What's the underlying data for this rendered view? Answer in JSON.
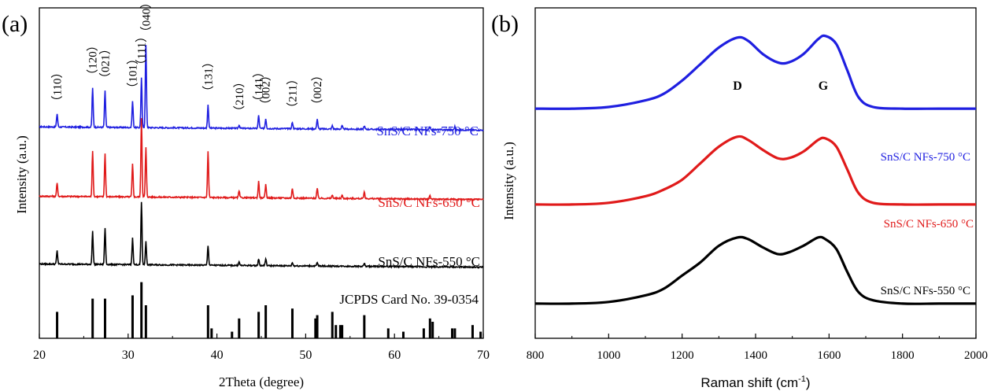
{
  "figure": {
    "panel_a": {
      "tag": "(a)",
      "xlabel": "2Theta (degree)",
      "ylabel": "Intensity (a.u.)",
      "xticks": [
        "20",
        "30",
        "40",
        "50",
        "60",
        "70"
      ],
      "hkl": [
        {
          "label": "（110）",
          "at": 22.0
        },
        {
          "label": "（120）",
          "at": 26.0
        },
        {
          "label": "（021）",
          "at": 27.4
        },
        {
          "label": "（101）",
          "at": 30.5
        },
        {
          "label": "（111）",
          "at": 31.5
        },
        {
          "label": "（040）",
          "at": 32.0
        },
        {
          "label": "（131）",
          "at": 39.0
        },
        {
          "label": "（210）",
          "at": 42.5
        },
        {
          "label": "（141）",
          "at": 44.7
        },
        {
          "label": "（002）",
          "at": 45.5
        },
        {
          "label": "（211）",
          "at": 48.5
        },
        {
          "label": "（002）",
          "at": 51.3
        }
      ],
      "labels": {
        "s750": "SnS/C NFs-750 °C",
        "s650": "SnS/C NFs-650 °C",
        "s550": "SnS/C NFs-550 °C",
        "ref": "JCPDS Card No. 39-0354"
      }
    },
    "panel_b": {
      "tag": "(b)",
      "xlabel_main": "Raman shift (cm",
      "xlabel_sup": "-1",
      "xlabel_end": ")",
      "ylabel": "Intensity (a.u.)",
      "xticks": [
        "800",
        "1000",
        "1200",
        "1400",
        "1600",
        "1800",
        "2000"
      ],
      "peak_d": "D",
      "peak_g": "G",
      "labels": {
        "s750": "SnS/C NFs-750 °C",
        "s650": "SnS/C NFs-650 °C",
        "s550": "SnS/C NFs-550 °C"
      }
    }
  },
  "chart_data": [
    {
      "type": "line",
      "title": "(a)",
      "xlabel": "2Theta (degree)",
      "ylabel": "Intensity (a.u.)",
      "xlim": [
        20,
        70
      ],
      "y_units": "arbitrary (stacked, offset)",
      "series": [
        {
          "name": "SnS/C NFs-750 °C",
          "color": "#1f1fe0",
          "baseline": 0.64,
          "peaks": [
            [
              22.0,
              0.04
            ],
            [
              26.0,
              0.12
            ],
            [
              27.4,
              0.11
            ],
            [
              30.5,
              0.08
            ],
            [
              31.5,
              0.15
            ],
            [
              32.0,
              0.25
            ],
            [
              39.0,
              0.07
            ],
            [
              42.5,
              0.01
            ],
            [
              44.7,
              0.04
            ],
            [
              45.5,
              0.03
            ],
            [
              48.5,
              0.02
            ],
            [
              51.3,
              0.03
            ],
            [
              53.0,
              0.01
            ],
            [
              54.1,
              0.01
            ],
            [
              56.6,
              0.01
            ],
            [
              64.0,
              0.01
            ],
            [
              66.8,
              0.01
            ]
          ]
        },
        {
          "name": "SnS/C NFs-650 °C",
          "color": "#e01a1a",
          "baseline": 0.43,
          "peaks": [
            [
              22.0,
              0.04
            ],
            [
              26.0,
              0.14
            ],
            [
              27.4,
              0.13
            ],
            [
              30.5,
              0.1
            ],
            [
              31.5,
              0.24
            ],
            [
              32.0,
              0.15
            ],
            [
              39.0,
              0.14
            ],
            [
              42.5,
              0.02
            ],
            [
              44.7,
              0.05
            ],
            [
              45.5,
              0.04
            ],
            [
              48.5,
              0.03
            ],
            [
              51.3,
              0.03
            ],
            [
              53.0,
              0.01
            ],
            [
              54.1,
              0.01
            ],
            [
              56.6,
              0.02
            ],
            [
              64.0,
              0.01
            ]
          ]
        },
        {
          "name": "SnS/C NFs-550 °C",
          "color": "#000000",
          "baseline": 0.225,
          "peaks": [
            [
              22.0,
              0.04
            ],
            [
              26.0,
              0.1
            ],
            [
              27.4,
              0.11
            ],
            [
              30.5,
              0.08
            ],
            [
              31.5,
              0.19
            ],
            [
              32.0,
              0.07
            ],
            [
              39.0,
              0.06
            ],
            [
              42.5,
              0.01
            ],
            [
              44.7,
              0.02
            ],
            [
              45.5,
              0.02
            ],
            [
              48.5,
              0.01
            ],
            [
              51.3,
              0.01
            ],
            [
              56.6,
              0.01
            ]
          ]
        },
        {
          "name": "JCPDS Card No. 39-0354",
          "type": "stick",
          "color": "#000000",
          "sticks": [
            [
              22.0,
              0.08
            ],
            [
              26.0,
              0.12
            ],
            [
              27.4,
              0.12
            ],
            [
              30.5,
              0.13
            ],
            [
              31.5,
              0.17
            ],
            [
              32.0,
              0.1
            ],
            [
              39.0,
              0.1
            ],
            [
              39.4,
              0.03
            ],
            [
              41.7,
              0.02
            ],
            [
              42.5,
              0.06
            ],
            [
              44.7,
              0.08
            ],
            [
              45.5,
              0.1
            ],
            [
              48.5,
              0.09
            ],
            [
              51.1,
              0.06
            ],
            [
              51.3,
              0.07
            ],
            [
              53.0,
              0.08
            ],
            [
              53.4,
              0.04
            ],
            [
              53.9,
              0.04
            ],
            [
              54.1,
              0.04
            ],
            [
              56.6,
              0.07
            ],
            [
              59.3,
              0.03
            ],
            [
              61.0,
              0.02
            ],
            [
              63.3,
              0.03
            ],
            [
              64.0,
              0.06
            ],
            [
              64.3,
              0.05
            ],
            [
              66.5,
              0.03
            ],
            [
              66.8,
              0.03
            ],
            [
              68.8,
              0.04
            ],
            [
              69.7,
              0.02
            ]
          ]
        }
      ]
    },
    {
      "type": "line",
      "title": "(b)",
      "xlabel": "Raman shift (cm-1)",
      "ylabel": "Intensity (a.u.)",
      "xlim": [
        800,
        2000
      ],
      "y_units": "arbitrary (stacked, offset)",
      "series": [
        {
          "name": "SnS/C NFs-750 °C",
          "color": "#1f1fe0",
          "x": [
            800,
            900,
            1000,
            1100,
            1150,
            1200,
            1250,
            1300,
            1350,
            1380,
            1420,
            1460,
            1490,
            1530,
            1570,
            1590,
            1620,
            1650,
            1680,
            1720,
            1800,
            1900,
            2000
          ],
          "y": [
            0.695,
            0.695,
            0.7,
            0.72,
            0.74,
            0.78,
            0.83,
            0.88,
            0.91,
            0.9,
            0.86,
            0.835,
            0.835,
            0.86,
            0.905,
            0.915,
            0.89,
            0.81,
            0.73,
            0.7,
            0.695,
            0.695,
            0.695
          ]
        },
        {
          "name": "SnS/C NFs-650 °C",
          "color": "#e01a1a",
          "x": [
            800,
            900,
            1000,
            1100,
            1150,
            1200,
            1250,
            1300,
            1350,
            1380,
            1420,
            1460,
            1490,
            1530,
            1570,
            1590,
            1620,
            1650,
            1680,
            1720,
            1800,
            1900,
            2000
          ],
          "y": [
            0.405,
            0.405,
            0.41,
            0.43,
            0.45,
            0.48,
            0.53,
            0.58,
            0.61,
            0.6,
            0.57,
            0.545,
            0.545,
            0.565,
            0.6,
            0.605,
            0.58,
            0.51,
            0.44,
            0.41,
            0.405,
            0.405,
            0.405
          ]
        },
        {
          "name": "SnS/C NFs-550 °C",
          "color": "#000000",
          "x": [
            800,
            900,
            1000,
            1100,
            1150,
            1200,
            1250,
            1300,
            1350,
            1380,
            1420,
            1460,
            1490,
            1530,
            1570,
            1590,
            1620,
            1650,
            1680,
            1720,
            1800,
            1900,
            2000
          ],
          "y": [
            0.105,
            0.105,
            0.11,
            0.13,
            0.15,
            0.19,
            0.23,
            0.28,
            0.305,
            0.3,
            0.275,
            0.255,
            0.26,
            0.28,
            0.305,
            0.3,
            0.27,
            0.2,
            0.14,
            0.115,
            0.105,
            0.105,
            0.105
          ]
        }
      ]
    }
  ]
}
